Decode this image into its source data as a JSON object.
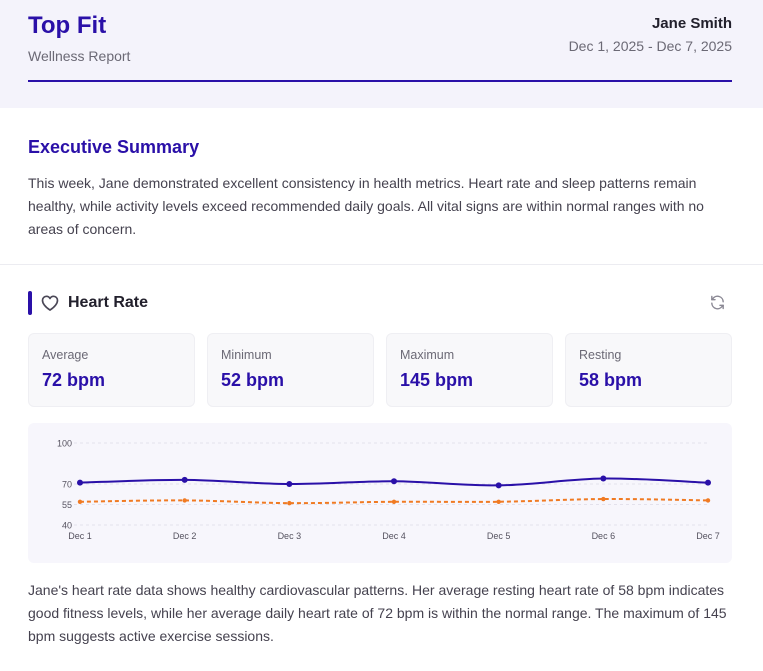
{
  "header": {
    "brand": "Top Fit",
    "subtitle": "Wellness Report",
    "user_name": "Jane Smith",
    "date_range": "Dec 1, 2025 - Dec 7, 2025"
  },
  "summary": {
    "title": "Executive Summary",
    "text": "This week, Jane demonstrated excellent consistency in health metrics. Heart rate and sleep patterns remain healthy, while activity levels exceed recommended daily goals. All vital signs are within normal ranges with no areas of concern."
  },
  "heart_rate": {
    "title": "Heart Rate",
    "icon": "heart-icon",
    "refresh_icon": "refresh-icon",
    "stats": [
      {
        "label": "Average",
        "value": "72 bpm"
      },
      {
        "label": "Minimum",
        "value": "52 bpm"
      },
      {
        "label": "Maximum",
        "value": "145 bpm"
      },
      {
        "label": "Resting",
        "value": "58 bpm"
      }
    ],
    "analysis": "Jane's heart rate data shows healthy cardiovascular patterns. Her average resting heart rate of 58 bpm indicates good fitness levels, while her average daily heart rate of 72 bpm is within the normal range. The maximum of 145 bpm suggests active exercise sessions."
  },
  "colors": {
    "accent": "#2a10a8",
    "resting_series": "#f07a22",
    "header_bg": "#f4f3fb"
  },
  "chart_data": {
    "type": "line",
    "categories": [
      "Dec 1",
      "Dec 2",
      "Dec 3",
      "Dec 4",
      "Dec 5",
      "Dec 6",
      "Dec 7"
    ],
    "yticks": [
      40,
      55,
      70,
      100
    ],
    "ylim": [
      40,
      100
    ],
    "grid": true,
    "series": [
      {
        "values": [
          71,
          73,
          70,
          72,
          69,
          74,
          71
        ],
        "color": "#2a10a8",
        "style": "solid"
      },
      {
        "values": [
          57,
          58,
          56,
          57,
          57,
          59,
          58
        ],
        "color": "#f07a22",
        "style": "dashed"
      }
    ]
  }
}
